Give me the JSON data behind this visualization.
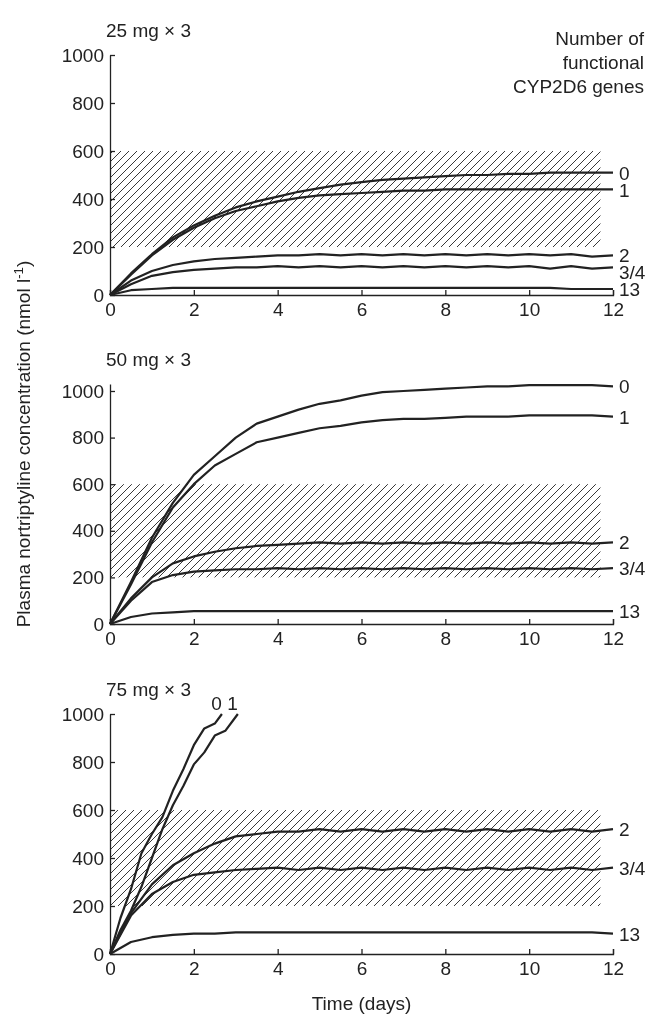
{
  "chart_data": [
    {
      "type": "line",
      "title": "25 mg × 3",
      "legend_title": "Number of functional CYP2D6 genes",
      "x": [
        0,
        0.5,
        1,
        1.5,
        2,
        2.5,
        3,
        3.5,
        4,
        4.5,
        5,
        5.5,
        6,
        6.5,
        7,
        7.5,
        8,
        8.5,
        9,
        9.5,
        10,
        10.5,
        11,
        11.5,
        12
      ],
      "xlim": [
        0,
        12
      ],
      "xticks": [
        0,
        2,
        4,
        6,
        8,
        10,
        12
      ],
      "ylim": [
        0,
        1000
      ],
      "yticks": [
        0,
        200,
        400,
        600,
        800,
        1000
      ],
      "bands": [
        {
          "axis": "y",
          "from": 200,
          "to": 600
        }
      ],
      "series": [
        {
          "name": "0",
          "color": "#222222",
          "values": [
            0,
            90,
            170,
            240,
            290,
            330,
            365,
            390,
            410,
            430,
            445,
            460,
            470,
            480,
            485,
            490,
            495,
            500,
            500,
            505,
            505,
            510,
            510,
            510,
            510
          ]
        },
        {
          "name": "1",
          "color": "#222222",
          "values": [
            0,
            85,
            165,
            230,
            280,
            320,
            350,
            370,
            390,
            405,
            415,
            420,
            425,
            430,
            435,
            435,
            440,
            440,
            440,
            440,
            440,
            440,
            440,
            440,
            440
          ]
        },
        {
          "name": "2",
          "color": "#222222",
          "values": [
            0,
            60,
            100,
            125,
            140,
            150,
            155,
            160,
            165,
            165,
            170,
            165,
            170,
            165,
            170,
            165,
            170,
            165,
            170,
            165,
            170,
            165,
            170,
            160,
            165
          ]
        },
        {
          "name": "3/4",
          "color": "#222222",
          "values": [
            0,
            45,
            80,
            95,
            105,
            110,
            115,
            115,
            120,
            115,
            120,
            115,
            120,
            115,
            120,
            115,
            120,
            115,
            120,
            115,
            120,
            110,
            120,
            110,
            115
          ]
        },
        {
          "name": "13",
          "color": "#222222",
          "values": [
            0,
            20,
            25,
            30,
            30,
            30,
            30,
            30,
            30,
            30,
            30,
            30,
            30,
            30,
            30,
            30,
            30,
            30,
            30,
            30,
            30,
            30,
            25,
            25,
            25
          ]
        }
      ]
    },
    {
      "type": "line",
      "title": "50 mg × 3",
      "ylabel": "Plasma nortriptyline concentration (nmol l$^{-1}$)",
      "x": [
        0,
        0.5,
        1,
        1.5,
        2,
        2.5,
        3,
        3.5,
        4,
        4.5,
        5,
        5.5,
        6,
        6.5,
        7,
        7.5,
        8,
        8.5,
        9,
        9.5,
        10,
        10.5,
        11,
        11.5,
        12
      ],
      "xlim": [
        0,
        12
      ],
      "xticks": [
        0,
        2,
        4,
        6,
        8,
        10,
        12
      ],
      "ylim": [
        0,
        1030
      ],
      "yticks": [
        0,
        200,
        400,
        600,
        800,
        1000
      ],
      "bands": [
        {
          "axis": "y",
          "from": 200,
          "to": 600
        }
      ],
      "series": [
        {
          "name": "0",
          "color": "#222222",
          "values": [
            0,
            180,
            370,
            520,
            640,
            720,
            800,
            860,
            890,
            920,
            945,
            960,
            980,
            995,
            1000,
            1005,
            1010,
            1015,
            1020,
            1020,
            1025,
            1025,
            1025,
            1025,
            1020
          ]
        },
        {
          "name": "1",
          "color": "#222222",
          "values": [
            0,
            170,
            350,
            500,
            600,
            680,
            730,
            780,
            800,
            820,
            840,
            850,
            865,
            875,
            880,
            880,
            885,
            890,
            890,
            890,
            895,
            895,
            895,
            895,
            890
          ]
        },
        {
          "name": "2",
          "color": "#222222",
          "values": [
            0,
            110,
            200,
            260,
            290,
            310,
            325,
            335,
            340,
            345,
            350,
            345,
            350,
            345,
            350,
            345,
            350,
            345,
            350,
            345,
            350,
            345,
            350,
            345,
            350
          ]
        },
        {
          "name": "3/4",
          "color": "#222222",
          "values": [
            0,
            100,
            180,
            210,
            225,
            230,
            235,
            235,
            240,
            235,
            240,
            235,
            240,
            235,
            240,
            235,
            240,
            235,
            240,
            235,
            240,
            235,
            240,
            235,
            240
          ]
        },
        {
          "name": "13",
          "color": "#222222",
          "values": [
            0,
            30,
            45,
            50,
            55,
            55,
            55,
            55,
            55,
            55,
            55,
            55,
            55,
            55,
            55,
            55,
            55,
            55,
            55,
            55,
            55,
            55,
            55,
            55,
            55
          ]
        }
      ]
    },
    {
      "type": "line",
      "title": "75 mg × 3",
      "xlabel": "Time (days)",
      "x": [
        0,
        0.5,
        1,
        1.5,
        2,
        2.5,
        3,
        3.5,
        4,
        4.5,
        5,
        5.5,
        6,
        6.5,
        7,
        7.5,
        8,
        8.5,
        9,
        9.5,
        10,
        10.5,
        11,
        11.5,
        12
      ],
      "xlim": [
        0,
        12
      ],
      "xticks": [
        0,
        2,
        4,
        6,
        8,
        10,
        12
      ],
      "ylim": [
        0,
        1000
      ],
      "yticks": [
        0,
        200,
        400,
        600,
        800,
        1000
      ],
      "bands": [
        {
          "axis": "y",
          "from": 200,
          "to": 600
        }
      ],
      "series": [
        {
          "name": "0",
          "color": "#222222",
          "x": [
            0,
            0.25,
            0.5,
            0.75,
            1,
            1.25,
            1.5,
            1.75,
            2,
            2.25,
            2.5,
            2.67
          ],
          "values": [
            0,
            150,
            270,
            420,
            500,
            570,
            680,
            770,
            870,
            940,
            960,
            1000
          ]
        },
        {
          "name": "1",
          "color": "#222222",
          "x": [
            0,
            0.25,
            0.5,
            0.75,
            1,
            1.25,
            1.5,
            1.75,
            2,
            2.25,
            2.5,
            2.75,
            3.05
          ],
          "values": [
            0,
            100,
            180,
            280,
            400,
            520,
            620,
            700,
            790,
            840,
            910,
            930,
            1000
          ]
        },
        {
          "name": "2",
          "color": "#222222",
          "values": [
            0,
            170,
            290,
            370,
            420,
            460,
            490,
            500,
            510,
            510,
            520,
            510,
            520,
            510,
            520,
            510,
            520,
            510,
            520,
            510,
            520,
            510,
            520,
            510,
            520
          ]
        },
        {
          "name": "3/4",
          "color": "#222222",
          "values": [
            0,
            160,
            250,
            300,
            330,
            340,
            350,
            355,
            360,
            350,
            360,
            350,
            360,
            350,
            360,
            350,
            360,
            350,
            360,
            350,
            360,
            350,
            360,
            350,
            360
          ]
        },
        {
          "name": "13",
          "color": "#222222",
          "values": [
            0,
            50,
            70,
            80,
            85,
            85,
            90,
            90,
            90,
            90,
            90,
            90,
            90,
            90,
            90,
            90,
            90,
            90,
            90,
            90,
            90,
            90,
            90,
            90,
            85
          ]
        }
      ]
    }
  ]
}
